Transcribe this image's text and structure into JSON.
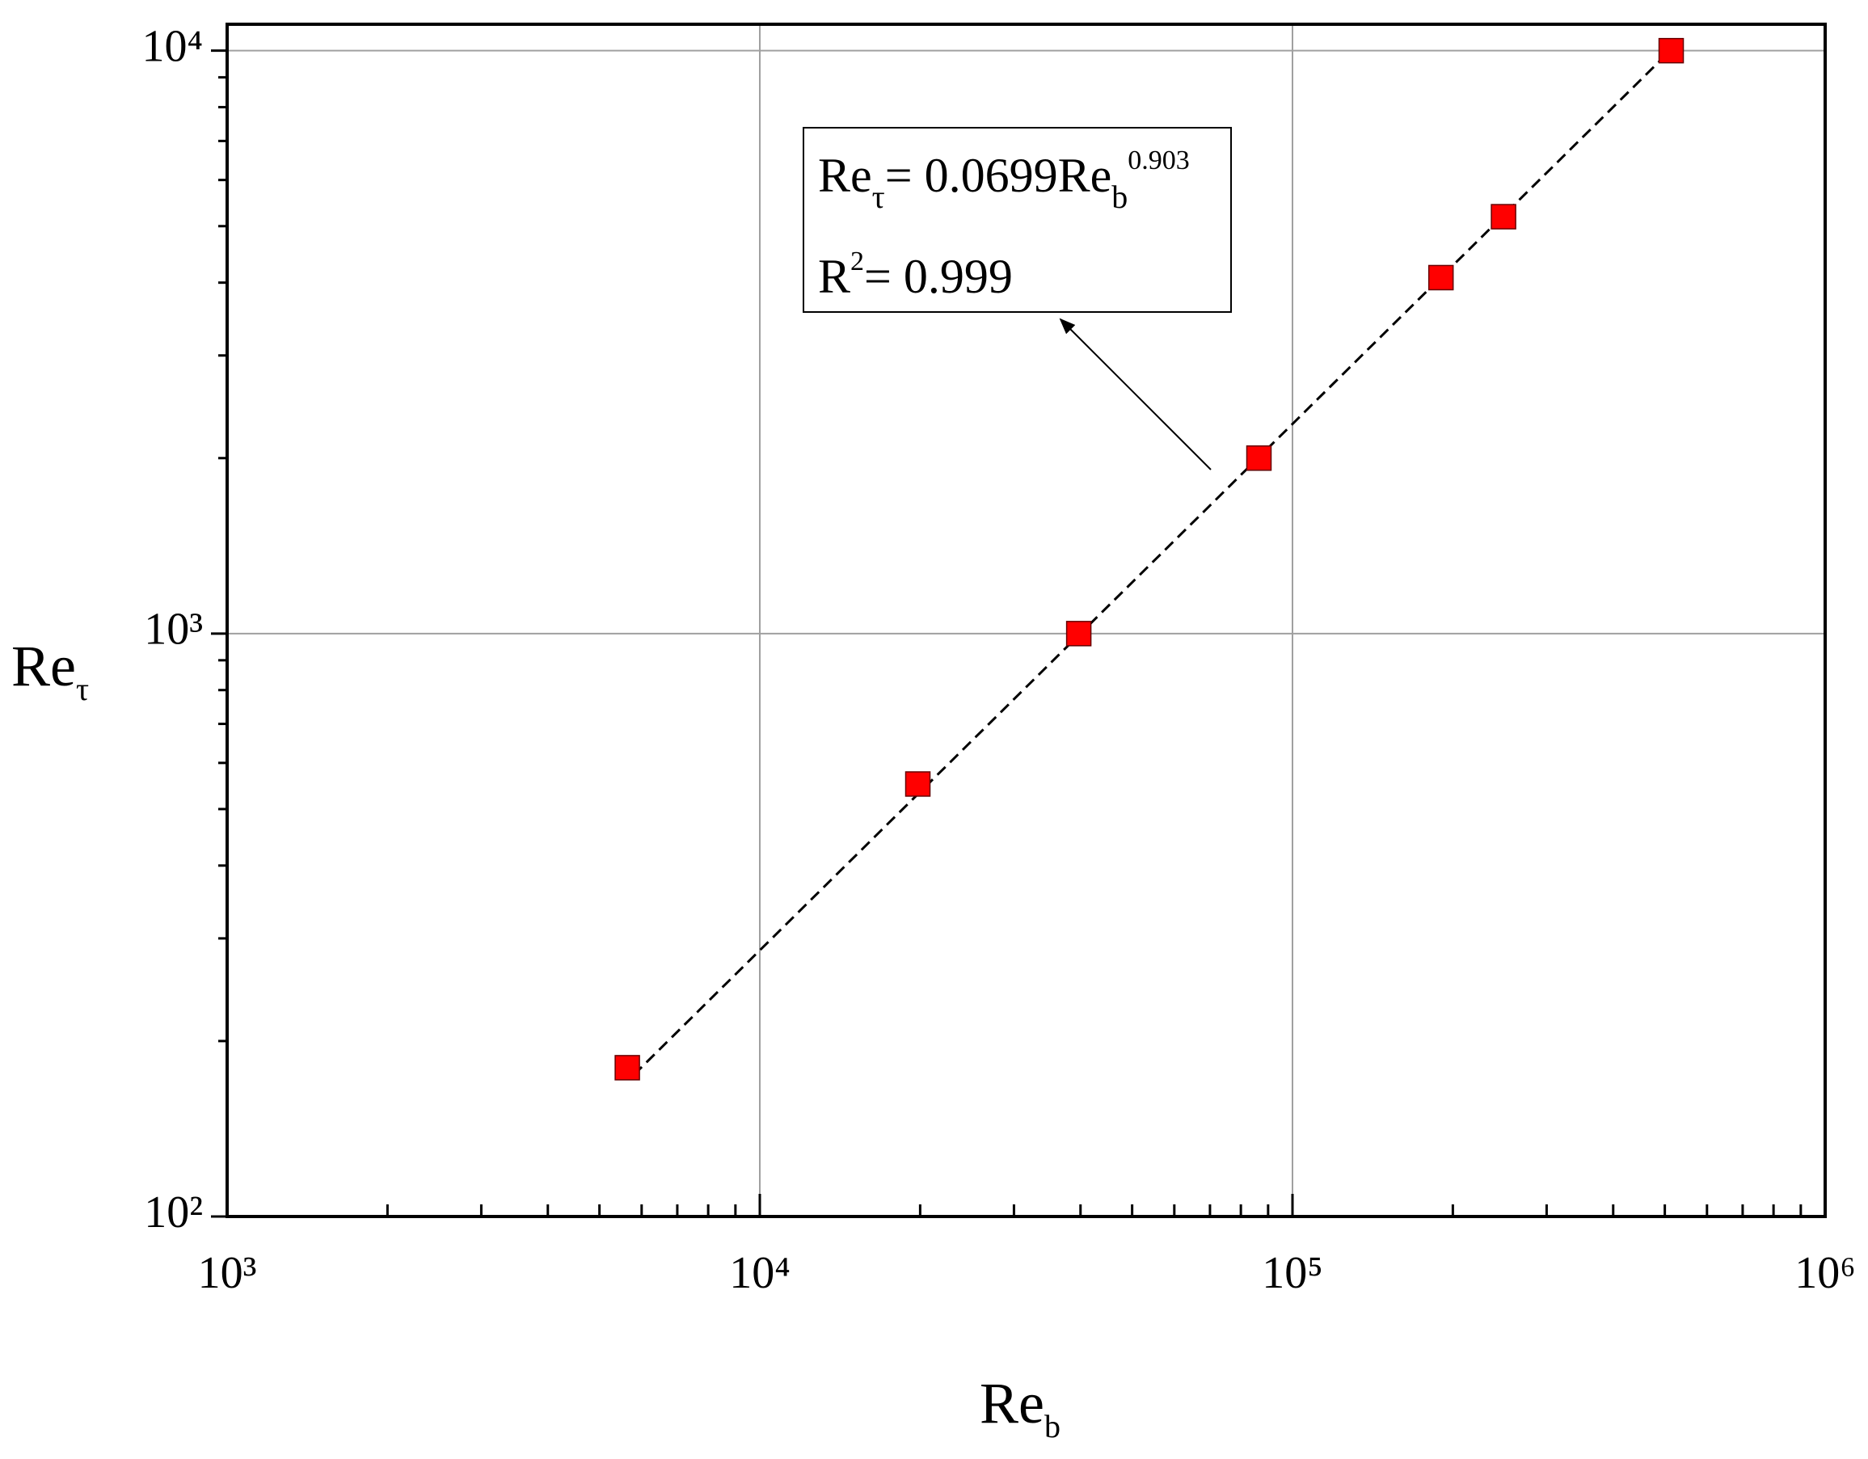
{
  "chart_data": {
    "type": "scatter",
    "xlabel": {
      "text": "Re",
      "sub": "b"
    },
    "ylabel": {
      "text": "Re",
      "sub": "τ"
    },
    "log_x": true,
    "log_y": true,
    "grid": true,
    "xlim": [
      1000,
      1000000
    ],
    "ylim": [
      100,
      11100
    ],
    "xticks": [
      {
        "value": 1000,
        "label": "10³"
      },
      {
        "value": 10000,
        "label": "10⁴"
      },
      {
        "value": 100000,
        "label": "10⁵"
      },
      {
        "value": 1000000,
        "label": "10⁶"
      }
    ],
    "yticks": [
      {
        "value": 100,
        "label": "10²"
      },
      {
        "value": 1000,
        "label": "10³"
      },
      {
        "value": 10000,
        "label": "10⁴"
      }
    ],
    "xminorticks": [
      2000,
      3000,
      4000,
      5000,
      6000,
      7000,
      8000,
      9000,
      20000,
      30000,
      40000,
      50000,
      60000,
      70000,
      80000,
      90000,
      200000,
      300000,
      400000,
      500000,
      600000,
      700000,
      800000,
      900000
    ],
    "yminorticks": [
      200,
      300,
      400,
      500,
      600,
      700,
      800,
      900,
      2000,
      3000,
      4000,
      5000,
      6000,
      7000,
      8000,
      9000
    ],
    "series": [
      {
        "type": "scatter",
        "color": "#ff0000",
        "x": [
          5640,
          19800,
          39700,
          86500,
          190000,
          249000,
          514000
        ],
        "values": [
          180,
          552,
          1000,
          2000,
          4080,
          5190,
          10000
        ]
      },
      {
        "type": "line",
        "color": "#000000",
        "dashed": true,
        "x": [
          5800,
          500000
        ],
        "values": [
          175,
          9790
        ]
      }
    ],
    "annotation": {
      "lines": [
        [
          {
            "text": "Re"
          },
          {
            "text": "τ",
            "style": "sub"
          },
          {
            "text": "= 0.0699Re"
          },
          {
            "text": "b",
            "style": "sub"
          },
          {
            "text": "0.903",
            "style": "sup"
          }
        ],
        [
          {
            "text": "R"
          },
          {
            "text": "2",
            "style": "sup"
          },
          {
            "text": "= 0.999"
          }
        ]
      ]
    }
  }
}
